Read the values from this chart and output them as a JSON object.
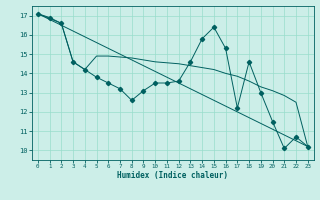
{
  "xlabel": "Humidex (Indice chaleur)",
  "bg_color": "#cceee8",
  "grid_color": "#99ddcc",
  "line_color": "#006060",
  "xlim": [
    -0.5,
    23.5
  ],
  "ylim": [
    9.5,
    17.5
  ],
  "xticks": [
    0,
    1,
    2,
    3,
    4,
    5,
    6,
    7,
    8,
    9,
    10,
    11,
    12,
    13,
    14,
    15,
    16,
    17,
    18,
    19,
    20,
    21,
    22,
    23
  ],
  "yticks": [
    10,
    11,
    12,
    13,
    14,
    15,
    16,
    17
  ],
  "line1_x": [
    0,
    1,
    2,
    3,
    4,
    5,
    6,
    7,
    8,
    9,
    10,
    11,
    12,
    13,
    14,
    15,
    16,
    17,
    18,
    19,
    20,
    21,
    22,
    23
  ],
  "line1_y": [
    17.1,
    16.9,
    16.6,
    14.6,
    14.2,
    13.8,
    13.5,
    13.2,
    12.6,
    13.1,
    13.5,
    13.5,
    13.6,
    14.6,
    15.8,
    16.4,
    15.3,
    12.2,
    14.6,
    13.0,
    11.5,
    10.1,
    10.7,
    10.2
  ],
  "line2_x": [
    0,
    23
  ],
  "line2_y": [
    17.1,
    10.2
  ],
  "line3_x": [
    0,
    2,
    3,
    4,
    5,
    6,
    7,
    8,
    9,
    10,
    11,
    12,
    13,
    14,
    15,
    16,
    17,
    18,
    19,
    20,
    21,
    22,
    23
  ],
  "line3_y": [
    17.1,
    16.6,
    14.6,
    14.2,
    14.9,
    14.9,
    14.85,
    14.8,
    14.7,
    14.6,
    14.55,
    14.5,
    14.4,
    14.3,
    14.2,
    14.0,
    13.85,
    13.6,
    13.3,
    13.1,
    12.85,
    12.5,
    10.2
  ]
}
